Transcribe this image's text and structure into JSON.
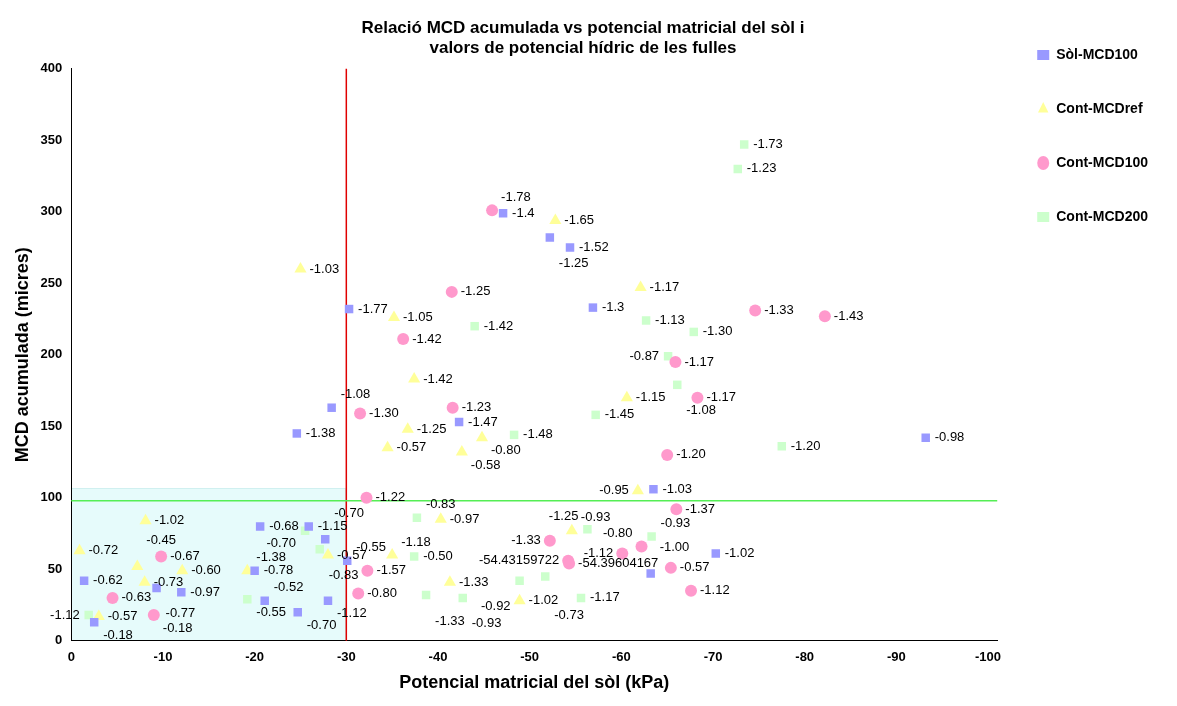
{
  "chart_data": {
    "type": "scatter",
    "title": "Relació MCD acumulada vs potencial matricial del sòl i\nvalors de potencial hídric de les fulles",
    "xlabel": "Potencial matricial del sòl (kPa)",
    "ylabel": "MCD acumulada (micres)",
    "xlim": [
      0,
      -101
    ],
    "xticks": [
      0,
      -10,
      -20,
      -30,
      -40,
      -50,
      -60,
      -70,
      -80,
      -90,
      -100
    ],
    "ylim": [
      0,
      400
    ],
    "yticks": [
      0,
      50,
      100,
      150,
      200,
      250,
      300,
      350,
      400
    ],
    "legend": "top right",
    "ref_lines": [
      {
        "axis": "x",
        "value": -30,
        "color": "#e00000"
      },
      {
        "axis": "y",
        "value": 98,
        "color": "#55ee55"
      }
    ],
    "series": [
      {
        "name": "Sòl-MCD100",
        "color": "#9999ff",
        "marker": "square",
        "x": [
          -47.1,
          -52.2,
          -54.4,
          -56.9,
          -30.3,
          -28.4,
          -24.6,
          -42.3,
          -93.2,
          -63.5,
          -70.3,
          -63.2,
          -20.6,
          -25.9,
          -27.7,
          -30.1,
          -1.4,
          -9.3,
          -12.0,
          -20.0,
          -21.1,
          -24.7,
          -28.0,
          -2.5
        ],
        "values": [
          299,
          282,
          275,
          233,
          232,
          163,
          145,
          153,
          142,
          106,
          61,
          47,
          80,
          80,
          71,
          56,
          42,
          37,
          34,
          49,
          28,
          20,
          28,
          13
        ]
      },
      {
        "name": "Cont-MCDref",
        "color": "#ffff99",
        "marker": "triangle",
        "x": [
          -25.0,
          -52.8,
          -62.1,
          -35.2,
          -37.4,
          -60.6,
          -36.7,
          -34.5,
          -44.8,
          -42.6,
          -61.8,
          -40.3,
          -54.6,
          -35.0,
          -41.3,
          -48.9,
          -8.1,
          -0.9,
          -7.2,
          -12.1,
          -8.0,
          -19.2,
          -28.0,
          -3.0
        ],
        "values": [
          260,
          294,
          247,
          226,
          183,
          170,
          148,
          135,
          142,
          132,
          105,
          85,
          77,
          60,
          41,
          28,
          84,
          63,
          52,
          49,
          41,
          49,
          60,
          17
        ]
      },
      {
        "name": "Cont-MCD100",
        "color": "#ff99cc",
        "marker": "circle",
        "x": [
          -45.9,
          -41.5,
          -36.2,
          -41.6,
          -31.5,
          -74.6,
          -82.2,
          -65.9,
          -68.3,
          -65.0,
          -66.0,
          -60.1,
          -62.2,
          -65.4,
          -67.6,
          -52.2,
          -54.2,
          -54.3,
          -32.2,
          -32.3,
          -31.3,
          -9.8,
          -4.5,
          -9.0
        ],
        "values": [
          301,
          244,
          211,
          163,
          159,
          231,
          227,
          195,
          170,
          130,
          92,
          61,
          66,
          51,
          35,
          70,
          56,
          54,
          100,
          49,
          33,
          59,
          30,
          18
        ]
      },
      {
        "name": "Cont-MCD200",
        "color": "#ccffcc",
        "marker": "square",
        "x": [
          -73.4,
          -72.7,
          -62.7,
          -67.9,
          -65.1,
          -66.1,
          -77.5,
          -44.0,
          -57.2,
          -48.3,
          -37.7,
          -56.3,
          -37.4,
          -51.7,
          -48.9,
          -63.3,
          -38.7,
          -42.7,
          -55.6,
          -25.5,
          -27.1,
          -19.2,
          -1.9
        ],
        "values": [
          347,
          330,
          224,
          216,
          199,
          179,
          136,
          220,
          158,
          144,
          86,
          78,
          59,
          45,
          42,
          73,
          32,
          30,
          30,
          77,
          64,
          29,
          18
        ]
      }
    ],
    "annotations": [
      {
        "text": "-1.4",
        "x": -47.1,
        "y": 299
      },
      {
        "text": "-1.25",
        "x": -52.2,
        "y": 282
      },
      {
        "text": "-1.52",
        "x": -54.4,
        "y": 275
      },
      {
        "text": "-1.3",
        "x": -56.9,
        "y": 233
      },
      {
        "text": "-1.77",
        "x": -30.3,
        "y": 232
      },
      {
        "text": "-1.08",
        "x": -28.4,
        "y": 163
      },
      {
        "text": "-1.38",
        "x": -24.6,
        "y": 145
      },
      {
        "text": "-1.47",
        "x": -42.3,
        "y": 153
      },
      {
        "text": "-0.98",
        "x": -93.2,
        "y": 142
      },
      {
        "text": "-1.03",
        "x": -63.5,
        "y": 106
      },
      {
        "text": "-1.02",
        "x": -70.3,
        "y": 61
      },
      {
        "text": "-1.00",
        "x": -63.2,
        "y": 47
      },
      {
        "text": "-0.68",
        "x": -20.6,
        "y": 80
      },
      {
        "text": "-1.15",
        "x": -25.9,
        "y": 80
      },
      {
        "text": "-0.70",
        "x": -27.7,
        "y": 71
      },
      {
        "text": "-0.55",
        "x": -30.1,
        "y": 56
      },
      {
        "text": "-0.62",
        "x": -1.4,
        "y": 42
      },
      {
        "text": "-0.77",
        "x": -9.3,
        "y": 37
      },
      {
        "text": "-0.97",
        "x": -12.0,
        "y": 34
      },
      {
        "text": "-0.78",
        "x": -20.0,
        "y": 49
      },
      {
        "text": "-0.52",
        "x": -21.1,
        "y": 28
      },
      {
        "text": "-0.70",
        "x": -24.7,
        "y": 20
      },
      {
        "text": "-1.12",
        "x": -28.0,
        "y": 28
      },
      {
        "text": "-0.18",
        "x": -2.5,
        "y": 13
      },
      {
        "text": "-1.03",
        "x": -25.0,
        "y": 260
      },
      {
        "text": "-1.65",
        "x": -52.8,
        "y": 294
      },
      {
        "text": "-1.17",
        "x": -62.1,
        "y": 247
      },
      {
        "text": "-1.05",
        "x": -35.2,
        "y": 226
      },
      {
        "text": "-1.42",
        "x": -37.4,
        "y": 183
      },
      {
        "text": "-1.15",
        "x": -60.6,
        "y": 170
      },
      {
        "text": "-1.25",
        "x": -36.7,
        "y": 148
      },
      {
        "text": "-0.57",
        "x": -34.5,
        "y": 135
      },
      {
        "text": "-0.80",
        "x": -44.8,
        "y": 142
      },
      {
        "text": "-0.58",
        "x": -42.6,
        "y": 132
      },
      {
        "text": "-0.95",
        "x": -61.8,
        "y": 105
      },
      {
        "text": "-0.97",
        "x": -40.3,
        "y": 85
      },
      {
        "text": "-0.93",
        "x": -54.6,
        "y": 77
      },
      {
        "text": "-1.18",
        "x": -35.0,
        "y": 60
      },
      {
        "text": "-1.33",
        "x": -41.3,
        "y": 41
      },
      {
        "text": "-1.02",
        "x": -48.9,
        "y": 28
      },
      {
        "text": "-1.02",
        "x": -8.1,
        "y": 84
      },
      {
        "text": "-0.72",
        "x": -0.9,
        "y": 63
      },
      {
        "text": "-0.45",
        "x": -7.2,
        "y": 52
      },
      {
        "text": "-0.60",
        "x": -12.1,
        "y": 49
      },
      {
        "text": "-0.73",
        "x": -8.0,
        "y": 41
      },
      {
        "text": "-1.38",
        "x": -19.2,
        "y": 49
      },
      {
        "text": "-0.57",
        "x": -28.0,
        "y": 60
      },
      {
        "text": "-0.57",
        "x": -3.0,
        "y": 17
      },
      {
        "text": "-1.78",
        "x": -45.9,
        "y": 301
      },
      {
        "text": "-1.25",
        "x": -41.5,
        "y": 244
      },
      {
        "text": "-1.42",
        "x": -36.2,
        "y": 211
      },
      {
        "text": "-1.23",
        "x": -41.6,
        "y": 163
      },
      {
        "text": "-1.30",
        "x": -31.5,
        "y": 159
      },
      {
        "text": "-1.33",
        "x": -74.6,
        "y": 231
      },
      {
        "text": "-1.43",
        "x": -82.2,
        "y": 227
      },
      {
        "text": "-1.17",
        "x": -65.9,
        "y": 195
      },
      {
        "text": "-1.17",
        "x": -68.3,
        "y": 170
      },
      {
        "text": "-1.20",
        "x": -65.0,
        "y": 130
      },
      {
        "text": "-1.37",
        "x": -66.0,
        "y": 92
      },
      {
        "text": "-1.12",
        "x": -60.1,
        "y": 61
      },
      {
        "text": "-0.80",
        "x": -62.2,
        "y": 66
      },
      {
        "text": "-0.57",
        "x": -65.4,
        "y": 51
      },
      {
        "text": "-1.12",
        "x": -67.6,
        "y": 35
      },
      {
        "text": "-1.33",
        "x": -52.2,
        "y": 70
      },
      {
        "text": "-54.43159722",
        "x": -54.2,
        "y": 56
      },
      {
        "text": "-54.39604167",
        "x": -54.3,
        "y": 54
      },
      {
        "text": "-1.22",
        "x": -32.2,
        "y": 100
      },
      {
        "text": "-1.57",
        "x": -32.3,
        "y": 49
      },
      {
        "text": "-0.80",
        "x": -31.3,
        "y": 33
      },
      {
        "text": "-0.67",
        "x": -9.8,
        "y": 59
      },
      {
        "text": "-0.63",
        "x": -4.5,
        "y": 30
      },
      {
        "text": "-0.18",
        "x": -9.0,
        "y": 18
      },
      {
        "text": "-1.73",
        "x": -73.4,
        "y": 347
      },
      {
        "text": "-1.23",
        "x": -72.7,
        "y": 330
      },
      {
        "text": "-1.13",
        "x": -62.7,
        "y": 224
      },
      {
        "text": "-1.30",
        "x": -67.9,
        "y": 216
      },
      {
        "text": "-0.87",
        "x": -65.1,
        "y": 199
      },
      {
        "text": "-1.08",
        "x": -66.1,
        "y": 179
      },
      {
        "text": "-1.20",
        "x": -77.5,
        "y": 136
      },
      {
        "text": "-1.42",
        "x": -44.0,
        "y": 220
      },
      {
        "text": "-1.45",
        "x": -57.2,
        "y": 158
      },
      {
        "text": "-1.48",
        "x": -48.3,
        "y": 144
      },
      {
        "text": "-0.83",
        "x": -37.7,
        "y": 86
      },
      {
        "text": "-1.25",
        "x": -56.3,
        "y": 78
      },
      {
        "text": "-0.50",
        "x": -37.4,
        "y": 59
      },
      {
        "text": "-0.73",
        "x": -51.7,
        "y": 45
      },
      {
        "text": "-0.92",
        "x": -48.9,
        "y": 42
      },
      {
        "text": "-0.93",
        "x": -63.3,
        "y": 73
      },
      {
        "text": "-1.33",
        "x": -38.7,
        "y": 32
      },
      {
        "text": "-0.93",
        "x": -42.7,
        "y": 30
      },
      {
        "text": "-1.17",
        "x": -55.6,
        "y": 30
      },
      {
        "text": "-0.70",
        "x": -25.5,
        "y": 77
      },
      {
        "text": "-0.83",
        "x": -27.1,
        "y": 64
      },
      {
        "text": "-0.55",
        "x": -19.2,
        "y": 29
      },
      {
        "text": "-1.12",
        "x": -1.9,
        "y": 18
      }
    ]
  }
}
